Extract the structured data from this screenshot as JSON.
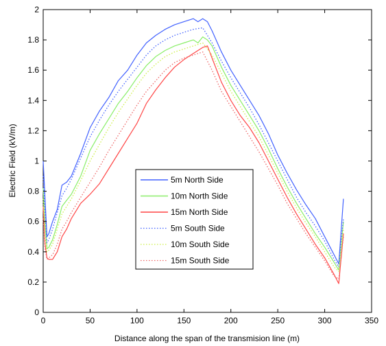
{
  "chart_data": {
    "type": "line",
    "title": "",
    "xlabel": "Distance along the span of the transmision line (m)",
    "ylabel": "Electric Field (kV/m)",
    "xlim": [
      0,
      350
    ],
    "ylim": [
      0,
      2
    ],
    "xticks": [
      0,
      50,
      100,
      150,
      200,
      250,
      300,
      350
    ],
    "yticks": [
      0,
      0.2,
      0.4,
      0.6,
      0.8,
      1,
      1.2,
      1.4,
      1.6,
      1.8,
      2
    ],
    "grid": false,
    "legend_position": "center-left",
    "series": [
      {
        "name": "5m  North Side",
        "color": "#4060ff",
        "style": "solid",
        "x": [
          0,
          2,
          4,
          6,
          10,
          15,
          20,
          25,
          30,
          40,
          50,
          60,
          70,
          80,
          90,
          100,
          110,
          120,
          130,
          140,
          150,
          160,
          165,
          170,
          175,
          180,
          190,
          200,
          210,
          220,
          230,
          240,
          250,
          260,
          270,
          280,
          290,
          300,
          310,
          315,
          320
        ],
        "y": [
          1.0,
          0.75,
          0.5,
          0.52,
          0.6,
          0.68,
          0.84,
          0.86,
          0.9,
          1.05,
          1.22,
          1.33,
          1.42,
          1.53,
          1.6,
          1.7,
          1.78,
          1.83,
          1.87,
          1.9,
          1.92,
          1.94,
          1.92,
          1.94,
          1.92,
          1.86,
          1.72,
          1.6,
          1.5,
          1.4,
          1.3,
          1.18,
          1.04,
          0.92,
          0.81,
          0.71,
          0.62,
          0.5,
          0.38,
          0.32,
          0.75
        ]
      },
      {
        "name": "10m North Side",
        "color": "#88ee66",
        "style": "solid",
        "x": [
          0,
          2,
          4,
          6,
          10,
          15,
          20,
          25,
          30,
          40,
          50,
          60,
          70,
          80,
          90,
          100,
          110,
          120,
          130,
          140,
          150,
          160,
          165,
          170,
          175,
          180,
          190,
          200,
          210,
          220,
          230,
          240,
          250,
          260,
          270,
          280,
          290,
          300,
          310,
          315,
          320
        ],
        "y": [
          0.82,
          0.6,
          0.42,
          0.43,
          0.48,
          0.58,
          0.7,
          0.74,
          0.78,
          0.9,
          1.07,
          1.18,
          1.28,
          1.38,
          1.46,
          1.55,
          1.63,
          1.69,
          1.73,
          1.76,
          1.78,
          1.8,
          1.78,
          1.82,
          1.8,
          1.76,
          1.62,
          1.5,
          1.4,
          1.3,
          1.2,
          1.08,
          0.95,
          0.83,
          0.72,
          0.62,
          0.52,
          0.43,
          0.33,
          0.28,
          0.6
        ]
      },
      {
        "name": "15m North Side",
        "color": "#ff4444",
        "style": "solid",
        "x": [
          0,
          2,
          4,
          6,
          10,
          15,
          20,
          25,
          30,
          40,
          50,
          60,
          70,
          80,
          90,
          100,
          110,
          120,
          130,
          140,
          150,
          160,
          165,
          170,
          175,
          180,
          190,
          200,
          210,
          220,
          230,
          240,
          250,
          260,
          270,
          280,
          290,
          300,
          310,
          315,
          320
        ],
        "y": [
          0.7,
          0.45,
          0.36,
          0.35,
          0.35,
          0.4,
          0.5,
          0.55,
          0.62,
          0.72,
          0.78,
          0.85,
          0.95,
          1.05,
          1.15,
          1.25,
          1.38,
          1.47,
          1.55,
          1.62,
          1.67,
          1.71,
          1.73,
          1.75,
          1.76,
          1.68,
          1.52,
          1.4,
          1.3,
          1.22,
          1.12,
          1.0,
          0.88,
          0.76,
          0.65,
          0.55,
          0.45,
          0.36,
          0.25,
          0.19,
          0.52
        ]
      },
      {
        "name": "5m  South Side",
        "color": "#4060ff",
        "style": "dotted",
        "x": [
          0,
          2,
          4,
          6,
          10,
          15,
          20,
          25,
          30,
          40,
          50,
          60,
          70,
          80,
          90,
          100,
          110,
          120,
          130,
          140,
          150,
          160,
          170,
          180,
          190,
          200,
          210,
          220,
          230,
          240,
          250,
          260,
          270,
          280,
          290,
          300,
          310,
          315,
          320
        ],
        "y": [
          0.9,
          0.65,
          0.46,
          0.48,
          0.55,
          0.66,
          0.77,
          0.82,
          0.88,
          1.02,
          1.16,
          1.27,
          1.37,
          1.46,
          1.54,
          1.62,
          1.7,
          1.76,
          1.8,
          1.83,
          1.85,
          1.87,
          1.88,
          1.78,
          1.66,
          1.55,
          1.45,
          1.35,
          1.24,
          1.12,
          1.0,
          0.88,
          0.76,
          0.66,
          0.57,
          0.47,
          0.35,
          0.3,
          0.62
        ]
      },
      {
        "name": "10m South Side",
        "color": "#ccf044",
        "style": "dotted",
        "x": [
          0,
          2,
          4,
          6,
          10,
          15,
          20,
          25,
          30,
          40,
          50,
          60,
          70,
          80,
          90,
          100,
          110,
          120,
          130,
          140,
          150,
          160,
          170,
          180,
          190,
          200,
          210,
          220,
          230,
          240,
          250,
          260,
          270,
          280,
          290,
          300,
          310,
          315,
          320
        ],
        "y": [
          0.75,
          0.5,
          0.4,
          0.41,
          0.45,
          0.55,
          0.65,
          0.7,
          0.75,
          0.87,
          1.0,
          1.11,
          1.22,
          1.32,
          1.41,
          1.5,
          1.58,
          1.64,
          1.69,
          1.72,
          1.74,
          1.76,
          1.78,
          1.7,
          1.58,
          1.46,
          1.36,
          1.26,
          1.16,
          1.04,
          0.92,
          0.8,
          0.69,
          0.59,
          0.5,
          0.4,
          0.3,
          0.27,
          0.55
        ]
      },
      {
        "name": "15m South Side",
        "color": "#ee6666",
        "style": "dotted",
        "x": [
          0,
          2,
          4,
          6,
          10,
          15,
          20,
          25,
          30,
          40,
          50,
          60,
          70,
          80,
          90,
          100,
          110,
          120,
          130,
          140,
          150,
          160,
          170,
          180,
          190,
          200,
          210,
          220,
          230,
          240,
          250,
          260,
          270,
          280,
          290,
          300,
          310,
          315,
          320
        ],
        "y": [
          0.62,
          0.42,
          0.35,
          0.36,
          0.38,
          0.45,
          0.55,
          0.6,
          0.66,
          0.76,
          0.86,
          0.96,
          1.07,
          1.17,
          1.27,
          1.37,
          1.46,
          1.53,
          1.6,
          1.65,
          1.68,
          1.7,
          1.72,
          1.6,
          1.46,
          1.36,
          1.26,
          1.16,
          1.06,
          0.95,
          0.84,
          0.72,
          0.62,
          0.52,
          0.43,
          0.34,
          0.24,
          0.22,
          0.5
        ]
      }
    ]
  }
}
